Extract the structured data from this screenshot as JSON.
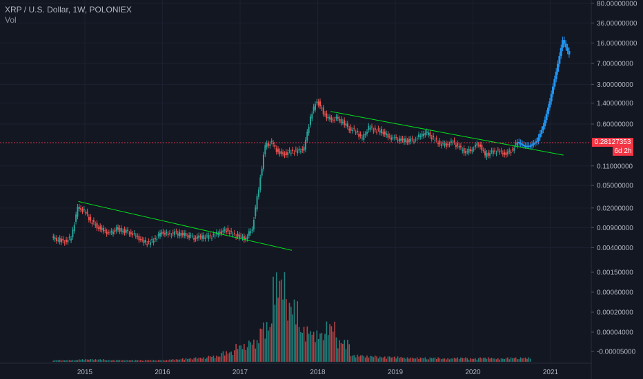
{
  "legend": {
    "title": "XRP / U.S. Dollar, 1W, POLONIEX",
    "vol_label": "Vol"
  },
  "last_price": {
    "value_label": "0.28127353",
    "countdown": "6d 2h",
    "color": "#f23645"
  },
  "colors": {
    "background": "#131722",
    "grid": "#1c2030",
    "up": "#26a69a",
    "down": "#ef5350",
    "projection": "#2196f3",
    "trendline": "#00e11a",
    "axis_text": "#b2b5be"
  },
  "chart_data": [
    {
      "type": "candlestick",
      "title": "XRP / U.S. Dollar, 1W, POLONIEX",
      "y_scale": "log",
      "y_tick_labels": [
        "80.00000000",
        "36.00000000",
        "16.00000000",
        "7.00000000",
        "3.00000000",
        "1.40000000",
        "0.60000000",
        "0.11000000",
        "0.05000000",
        "0.02000000",
        "0.00900000",
        "0.00400000"
      ],
      "y_tick_values": [
        80,
        36,
        16,
        7,
        3,
        1.4,
        0.6,
        0.11,
        0.05,
        0.02,
        0.009,
        0.004
      ],
      "x_tick_labels": [
        "2015",
        "2016",
        "2017",
        "2018",
        "2019",
        "2020",
        "2021"
      ],
      "x_range": [
        "2014-08",
        "2021-04"
      ],
      "series": [
        {
          "points": [
            [
              "2014-08",
              0.006
            ],
            [
              "2014-09",
              0.0055
            ],
            [
              "2014-10",
              0.0052
            ],
            [
              "2014-11",
              0.006
            ],
            [
              "2014-12",
              0.02
            ],
            [
              "2015-01",
              0.018
            ],
            [
              "2015-02",
              0.012
            ],
            [
              "2015-03",
              0.0095
            ],
            [
              "2015-04",
              0.008
            ],
            [
              "2015-05",
              0.007
            ],
            [
              "2015-06",
              0.0085
            ],
            [
              "2015-07",
              0.008
            ],
            [
              "2015-08",
              0.0075
            ],
            [
              "2015-09",
              0.0065
            ],
            [
              "2015-10",
              0.0052
            ],
            [
              "2015-11",
              0.0048
            ],
            [
              "2015-12",
              0.0058
            ],
            [
              "2016-01",
              0.0075
            ],
            [
              "2016-02",
              0.0068
            ],
            [
              "2016-03",
              0.0072
            ],
            [
              "2016-04",
              0.0069
            ],
            [
              "2016-05",
              0.0067
            ],
            [
              "2016-06",
              0.006
            ],
            [
              "2016-07",
              0.0062
            ],
            [
              "2016-08",
              0.0061
            ],
            [
              "2016-09",
              0.0065
            ],
            [
              "2016-10",
              0.0075
            ],
            [
              "2016-11",
              0.0082
            ],
            [
              "2016-12",
              0.0068
            ],
            [
              "2017-01",
              0.0063
            ],
            [
              "2017-02",
              0.0058
            ],
            [
              "2017-03",
              0.009
            ],
            [
              "2017-04",
              0.045
            ],
            [
              "2017-05",
              0.25
            ],
            [
              "2017-06",
              0.28
            ],
            [
              "2017-07",
              0.19
            ],
            [
              "2017-08",
              0.18
            ],
            [
              "2017-09",
              0.2
            ],
            [
              "2017-10",
              0.2
            ],
            [
              "2017-11",
              0.22
            ],
            [
              "2017-12",
              0.8
            ],
            [
              "2018-01",
              1.6
            ],
            [
              "2018-02",
              0.95
            ],
            [
              "2018-03",
              0.7
            ],
            [
              "2018-04",
              0.75
            ],
            [
              "2018-05",
              0.65
            ],
            [
              "2018-06",
              0.5
            ],
            [
              "2018-07",
              0.45
            ],
            [
              "2018-08",
              0.33
            ],
            [
              "2018-09",
              0.52
            ],
            [
              "2018-10",
              0.47
            ],
            [
              "2018-11",
              0.45
            ],
            [
              "2018-12",
              0.36
            ],
            [
              "2019-01",
              0.33
            ],
            [
              "2019-02",
              0.31
            ],
            [
              "2019-03",
              0.31
            ],
            [
              "2019-04",
              0.32
            ],
            [
              "2019-05",
              0.38
            ],
            [
              "2019-06",
              0.42
            ],
            [
              "2019-07",
              0.33
            ],
            [
              "2019-08",
              0.27
            ],
            [
              "2019-09",
              0.26
            ],
            [
              "2019-10",
              0.29
            ],
            [
              "2019-11",
              0.23
            ],
            [
              "2019-12",
              0.19
            ],
            [
              "2020-01",
              0.22
            ],
            [
              "2020-02",
              0.28
            ],
            [
              "2020-03",
              0.17
            ],
            [
              "2020-04",
              0.19
            ],
            [
              "2020-05",
              0.2
            ],
            [
              "2020-06",
              0.18
            ],
            [
              "2020-07",
              0.2
            ],
            [
              "2020-08",
              0.29
            ]
          ]
        },
        {
          "name": "",
          "style": "projection",
          "points": [
            [
              "2020-08",
              0.29
            ],
            [
              "2020-09",
              0.25
            ],
            [
              "2020-10",
              0.25
            ],
            [
              "2020-11",
              0.3
            ],
            [
              "2020-12",
              0.55
            ],
            [
              "2021-01",
              1.5
            ],
            [
              "2021-02",
              5
            ],
            [
              "2021-03",
              18
            ],
            [
              "2021-04",
              10
            ]
          ]
        }
      ],
      "trendlines": [
        {
          "from": [
            "2014-12",
            0.026
          ],
          "to": [
            "2017-09",
            0.0036
          ]
        },
        {
          "from": [
            "2018-03",
            1.0
          ],
          "to": [
            "2021-03",
            0.17
          ]
        }
      ]
    },
    {
      "type": "bar",
      "title": "Vol",
      "y_tick_labels": [
        "0.00150000",
        "0.00060000",
        "0.00020000",
        "0.00004000",
        "-0.00005000"
      ],
      "categories": [
        "2014-08",
        "2014-10",
        "2014-12",
        "2015-02",
        "2015-04",
        "2015-06",
        "2015-08",
        "2015-10",
        "2015-12",
        "2016-02",
        "2016-04",
        "2016-06",
        "2016-08",
        "2016-10",
        "2016-12",
        "2017-02",
        "2017-04",
        "2017-06",
        "2017-08",
        "2017-10",
        "2017-12",
        "2018-02",
        "2018-04",
        "2018-06",
        "2018-08",
        "2018-10",
        "2018-12",
        "2019-02",
        "2019-04",
        "2019-06",
        "2019-08",
        "2019-10",
        "2019-12",
        "2020-02",
        "2020-04",
        "2020-06",
        "2020-08"
      ],
      "values": [
        0.02,
        0.02,
        0.03,
        0.03,
        0.02,
        0.02,
        0.02,
        0.02,
        0.02,
        0.03,
        0.04,
        0.05,
        0.07,
        0.12,
        0.2,
        0.25,
        0.45,
        1.0,
        0.7,
        0.4,
        0.35,
        0.45,
        0.25,
        0.08,
        0.07,
        0.06,
        0.06,
        0.05,
        0.05,
        0.05,
        0.04,
        0.05,
        0.04,
        0.05,
        0.04,
        0.05,
        0.05
      ]
    }
  ]
}
